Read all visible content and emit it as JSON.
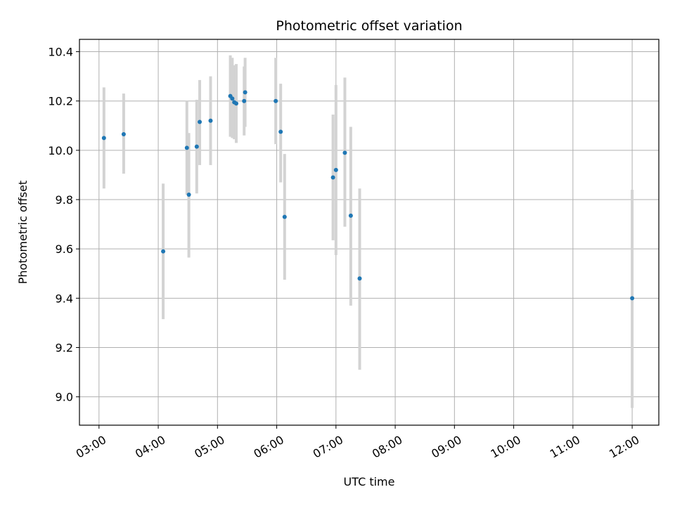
{
  "chart_data": {
    "type": "scatter",
    "title": "Photometric offset variation",
    "xlabel": "UTC time",
    "ylabel": "Photometric offset",
    "x_unit": "UTC hour of day",
    "xlim": [
      2.67,
      12.45
    ],
    "ylim": [
      8.885,
      10.45
    ],
    "x_ticks": [
      3,
      4,
      5,
      6,
      7,
      8,
      9,
      10,
      11,
      12
    ],
    "x_tick_labels": [
      "03:00",
      "04:00",
      "05:00",
      "06:00",
      "07:00",
      "08:00",
      "09:00",
      "10:00",
      "11:00",
      "12:00"
    ],
    "y_ticks": [
      9.0,
      9.2,
      9.4,
      9.6,
      9.8,
      10.0,
      10.2,
      10.4
    ],
    "y_tick_labels": [
      "9.0",
      "9.2",
      "9.4",
      "9.6",
      "9.8",
      "10.0",
      "10.2",
      "10.4"
    ],
    "grid": true,
    "colors": {
      "point": "#1f77b4",
      "errorbar": "#d3d3d3",
      "grid": "#b0b0b0"
    },
    "points": [
      {
        "time": "03:05",
        "y": 10.05,
        "ylo": 9.845,
        "yhi": 10.255
      },
      {
        "time": "03:25",
        "y": 10.065,
        "ylo": 9.905,
        "yhi": 10.23
      },
      {
        "time": "04:05",
        "y": 9.59,
        "ylo": 9.315,
        "yhi": 9.865
      },
      {
        "time": "04:29",
        "y": 10.01,
        "ylo": 9.82,
        "yhi": 10.2
      },
      {
        "time": "04:31",
        "y": 9.82,
        "ylo": 9.565,
        "yhi": 10.07
      },
      {
        "time": "04:39",
        "y": 10.015,
        "ylo": 9.825,
        "yhi": 10.205
      },
      {
        "time": "04:42",
        "y": 10.115,
        "ylo": 9.94,
        "yhi": 10.285
      },
      {
        "time": "04:53",
        "y": 10.12,
        "ylo": 9.94,
        "yhi": 10.3
      },
      {
        "time": "05:13",
        "y": 10.22,
        "ylo": 10.055,
        "yhi": 10.385
      },
      {
        "time": "05:15",
        "y": 10.21,
        "ylo": 10.05,
        "yhi": 10.375
      },
      {
        "time": "05:17",
        "y": 10.195,
        "ylo": 10.045,
        "yhi": 10.345
      },
      {
        "time": "05:19",
        "y": 10.19,
        "ylo": 10.03,
        "yhi": 10.35
      },
      {
        "time": "05:27",
        "y": 10.2,
        "ylo": 10.06,
        "yhi": 10.34
      },
      {
        "time": "05:28",
        "y": 10.235,
        "ylo": 10.095,
        "yhi": 10.375
      },
      {
        "time": "05:59",
        "y": 10.2,
        "ylo": 10.025,
        "yhi": 10.375
      },
      {
        "time": "06:04",
        "y": 10.075,
        "ylo": 9.87,
        "yhi": 10.27
      },
      {
        "time": "06:08",
        "y": 9.73,
        "ylo": 9.475,
        "yhi": 9.985
      },
      {
        "time": "06:57",
        "y": 9.89,
        "ylo": 9.635,
        "yhi": 10.145
      },
      {
        "time": "07:00",
        "y": 9.92,
        "ylo": 9.575,
        "yhi": 10.265
      },
      {
        "time": "07:09",
        "y": 9.99,
        "ylo": 9.69,
        "yhi": 10.295
      },
      {
        "time": "07:15",
        "y": 9.735,
        "ylo": 9.37,
        "yhi": 10.095
      },
      {
        "time": "07:24",
        "y": 9.48,
        "ylo": 9.11,
        "yhi": 9.845
      },
      {
        "time": "12:00",
        "y": 9.4,
        "ylo": 8.955,
        "yhi": 9.84
      }
    ]
  }
}
